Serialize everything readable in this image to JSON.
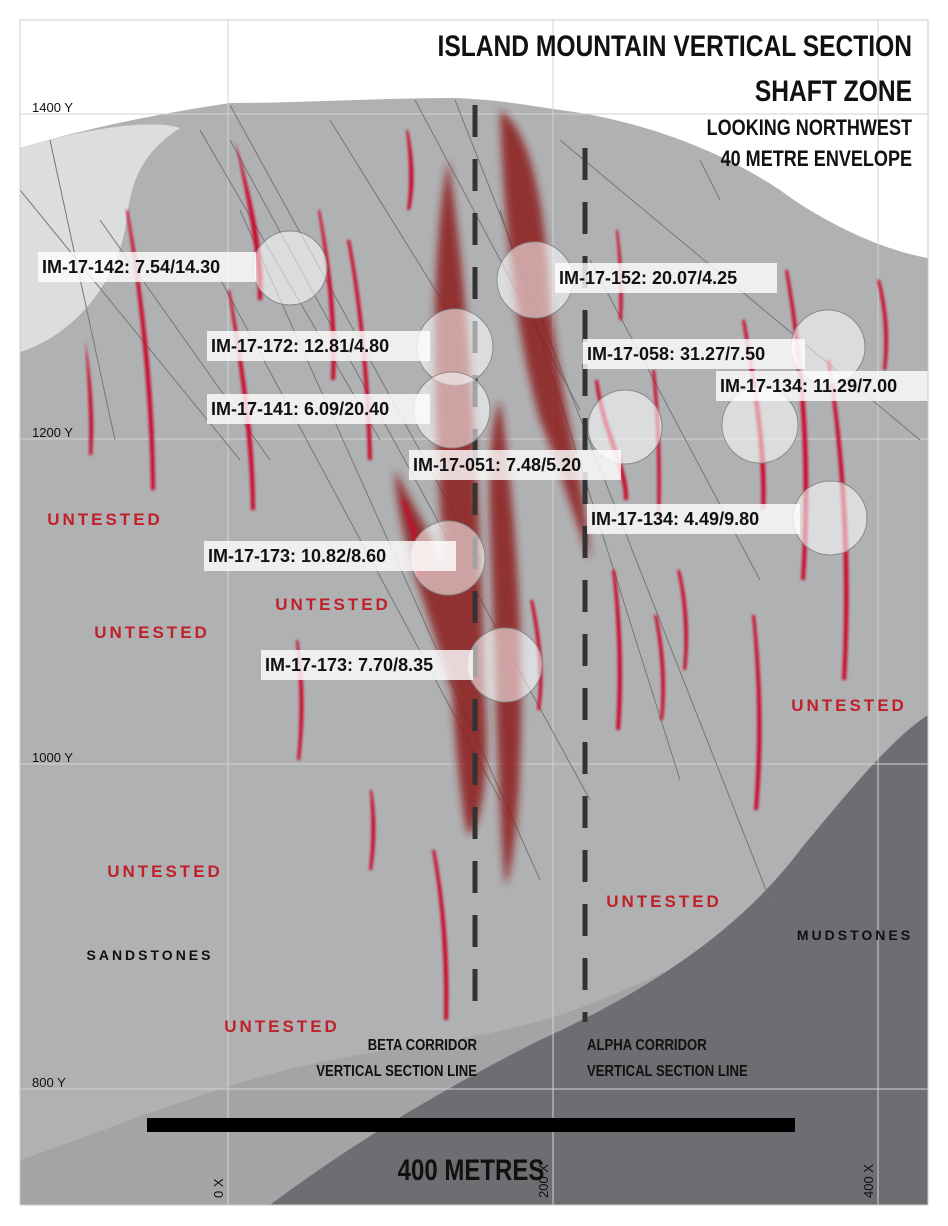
{
  "title": [
    "ISLAND MOUNTAIN VERTICAL SECTION",
    "SHAFT ZONE",
    "LOOKING NORTHWEST",
    "40 METRE ENVELOPE"
  ],
  "elevations": [
    "1400 Y",
    "1200 Y",
    "1000 Y",
    "800 Y"
  ],
  "eastings": [
    "0 X",
    "200 X",
    "400 X"
  ],
  "intercepts": [
    "IM-17-142: 7.54/14.30",
    "IM-17-152: 20.07/4.25",
    "IM-17-172: 12.81/4.80",
    "IM-17-058: 31.27/7.50",
    "IM-17-134: 11.29/7.00",
    "IM-17-141: 6.09/20.40",
    "IM-17-051: 7.48/5.20",
    "IM-17-134: 4.49/9.80",
    "IM-17-173: 10.82/8.60",
    "IM-17-173: 7.70/8.35"
  ],
  "untested": [
    "UNTESTED",
    "UNTESTED",
    "UNTESTED",
    "UNTESTED",
    "UNTESTED",
    "UNTESTED",
    "UNTESTED"
  ],
  "units": [
    "SANDSTONES",
    "MUDSTONES"
  ],
  "corridors": {
    "beta": [
      "BETA CORRIDOR",
      "VERTICAL SECTION LINE"
    ],
    "alpha": [
      "ALPHA CORRIDOR",
      "VERTICAL SECTION LINE"
    ]
  },
  "scale_bar": "400 METRES"
}
